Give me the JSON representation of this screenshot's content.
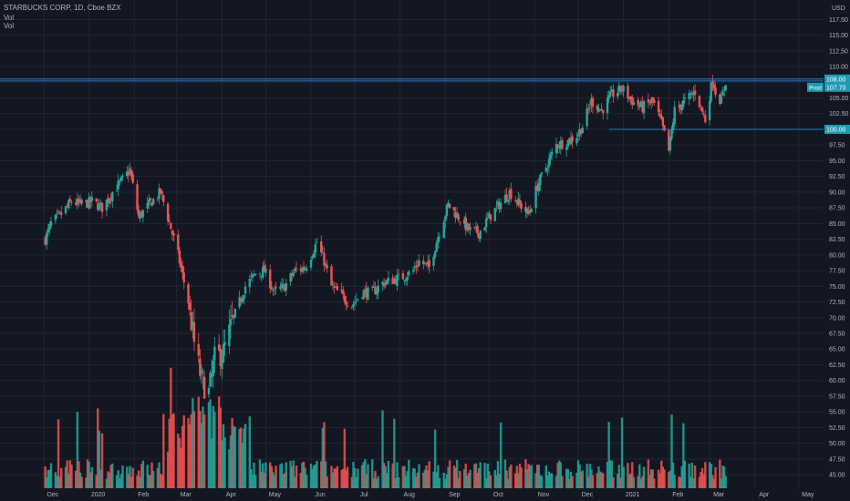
{
  "header": {
    "symbol_line": "STARBUCKS CORP, 1D, Cboe BZX",
    "vol_labels": [
      "Vol",
      "Vol"
    ]
  },
  "colors": {
    "background": "#131722",
    "grid": "#222633",
    "up": "#26a69a",
    "down": "#ef5350",
    "level_line": "#2196f3",
    "tag_bg": "#1f9bb0",
    "axis_text": "#b2b5be"
  },
  "chart_data": {
    "type": "candlestick",
    "title": "STARBUCKS CORP, 1D, Cboe BZX",
    "currency": "USD",
    "y_ticks": [
      45.0,
      47.5,
      50.0,
      52.5,
      55.0,
      57.5,
      60.0,
      62.5,
      65.0,
      67.5,
      70.0,
      72.5,
      75.0,
      77.5,
      80.0,
      82.5,
      85.0,
      87.5,
      90.0,
      92.5,
      95.0,
      97.5,
      100.0,
      102.5,
      105.0,
      107.5,
      110.0,
      112.5,
      115.0,
      117.5
    ],
    "y_tick_labels": [
      "45.00",
      "47.50",
      "50.00",
      "52.50",
      "55.00",
      "57.50",
      "60.00",
      "62.50",
      "65.00",
      "67.50",
      "70.00",
      "72.50",
      "75.00",
      "77.50",
      "80.00",
      "82.50",
      "85.00",
      "87.50",
      "90.00",
      "92.50",
      "95.00",
      "97.50",
      "100.00",
      "102.50",
      "105.00",
      "107.50",
      "110.00",
      "112.50",
      "115.00",
      "117.50"
    ],
    "x_tick_labels": [
      "Dec",
      "2020",
      "Feb",
      "Mar",
      "Apr",
      "May",
      "Jun",
      "Jul",
      "Aug",
      "Sep",
      "Oct",
      "Nov",
      "Dec",
      "2021",
      "Feb",
      "Mar",
      "Apr",
      "May"
    ],
    "ylim": [
      44,
      119
    ],
    "price_path": [
      [
        "2019-12-02",
        82.5
      ],
      [
        "2019-12-06",
        85.0
      ],
      [
        "2019-12-13",
        86.5
      ],
      [
        "2019-12-20",
        88.5
      ],
      [
        "2019-12-27",
        88.0
      ],
      [
        "2020-01-03",
        88.5
      ],
      [
        "2020-01-10",
        87.5
      ],
      [
        "2020-01-17",
        90.0
      ],
      [
        "2020-01-24",
        92.0
      ],
      [
        "2020-01-29",
        93.5
      ],
      [
        "2020-02-04",
        86.0
      ],
      [
        "2020-02-11",
        88.0
      ],
      [
        "2020-02-19",
        90.0
      ],
      [
        "2020-02-24",
        86.0
      ],
      [
        "2020-03-02",
        80.0
      ],
      [
        "2020-03-09",
        72.5
      ],
      [
        "2020-03-13",
        66.0
      ],
      [
        "2020-03-18",
        60.0
      ],
      [
        "2020-03-23",
        58.0
      ],
      [
        "2020-03-27",
        63.5
      ],
      [
        "2020-04-02",
        64.5
      ],
      [
        "2020-04-09",
        70.0
      ],
      [
        "2020-04-17",
        75.0
      ],
      [
        "2020-04-24",
        77.0
      ],
      [
        "2020-04-30",
        77.5
      ],
      [
        "2020-05-07",
        74.0
      ],
      [
        "2020-05-14",
        75.0
      ],
      [
        "2020-05-21",
        77.5
      ],
      [
        "2020-05-28",
        78.0
      ],
      [
        "2020-06-05",
        82.0
      ],
      [
        "2020-06-10",
        79.0
      ],
      [
        "2020-06-15",
        75.0
      ],
      [
        "2020-06-22",
        73.5
      ],
      [
        "2020-06-29",
        72.0
      ],
      [
        "2020-07-06",
        74.0
      ],
      [
        "2020-07-13",
        74.0
      ],
      [
        "2020-07-20",
        75.5
      ],
      [
        "2020-07-27",
        76.0
      ],
      [
        "2020-08-03",
        76.5
      ],
      [
        "2020-08-10",
        77.5
      ],
      [
        "2020-08-14",
        79.0
      ],
      [
        "2020-08-21",
        78.0
      ],
      [
        "2020-08-27",
        83.0
      ],
      [
        "2020-09-03",
        88.0
      ],
      [
        "2020-09-10",
        86.0
      ],
      [
        "2020-09-17",
        84.0
      ],
      [
        "2020-09-24",
        83.5
      ],
      [
        "2020-10-01",
        86.0
      ],
      [
        "2020-10-08",
        88.0
      ],
      [
        "2020-10-15",
        90.0
      ],
      [
        "2020-10-22",
        88.0
      ],
      [
        "2020-10-28",
        86.5
      ],
      [
        "2020-11-03",
        91.0
      ],
      [
        "2020-11-09",
        94.0
      ],
      [
        "2020-11-16",
        97.5
      ],
      [
        "2020-11-23",
        98.0
      ],
      [
        "2020-11-30",
        99.0
      ],
      [
        "2020-12-04",
        100.5
      ],
      [
        "2020-12-10",
        104.5
      ],
      [
        "2020-12-17",
        103.0
      ],
      [
        "2020-12-24",
        105.5
      ],
      [
        "2020-12-31",
        106.5
      ],
      [
        "2021-01-07",
        104.5
      ],
      [
        "2021-01-14",
        103.5
      ],
      [
        "2021-01-21",
        104.5
      ],
      [
        "2021-01-27",
        101.0
      ],
      [
        "2021-02-01",
        96.5
      ],
      [
        "2021-02-05",
        103.0
      ],
      [
        "2021-02-12",
        104.5
      ],
      [
        "2021-02-19",
        106.0
      ],
      [
        "2021-02-23",
        103.5
      ],
      [
        "2021-02-26",
        101.5
      ],
      [
        "2021-03-03",
        108.0
      ],
      [
        "2021-03-05",
        106.0
      ],
      [
        "2021-03-09",
        104.5
      ],
      [
        "2021-03-12",
        107.7
      ]
    ],
    "volume_note": "Vol",
    "horizontal_levels": [
      {
        "value": 108.0,
        "label": "108.00"
      },
      {
        "value": 107.7,
        "label": "107.70"
      },
      {
        "value": 100.0,
        "label": "100.00"
      }
    ],
    "last_price_tag": {
      "prefix": "Prod",
      "label": "107.70"
    },
    "grid": true,
    "legend": "top-left"
  }
}
